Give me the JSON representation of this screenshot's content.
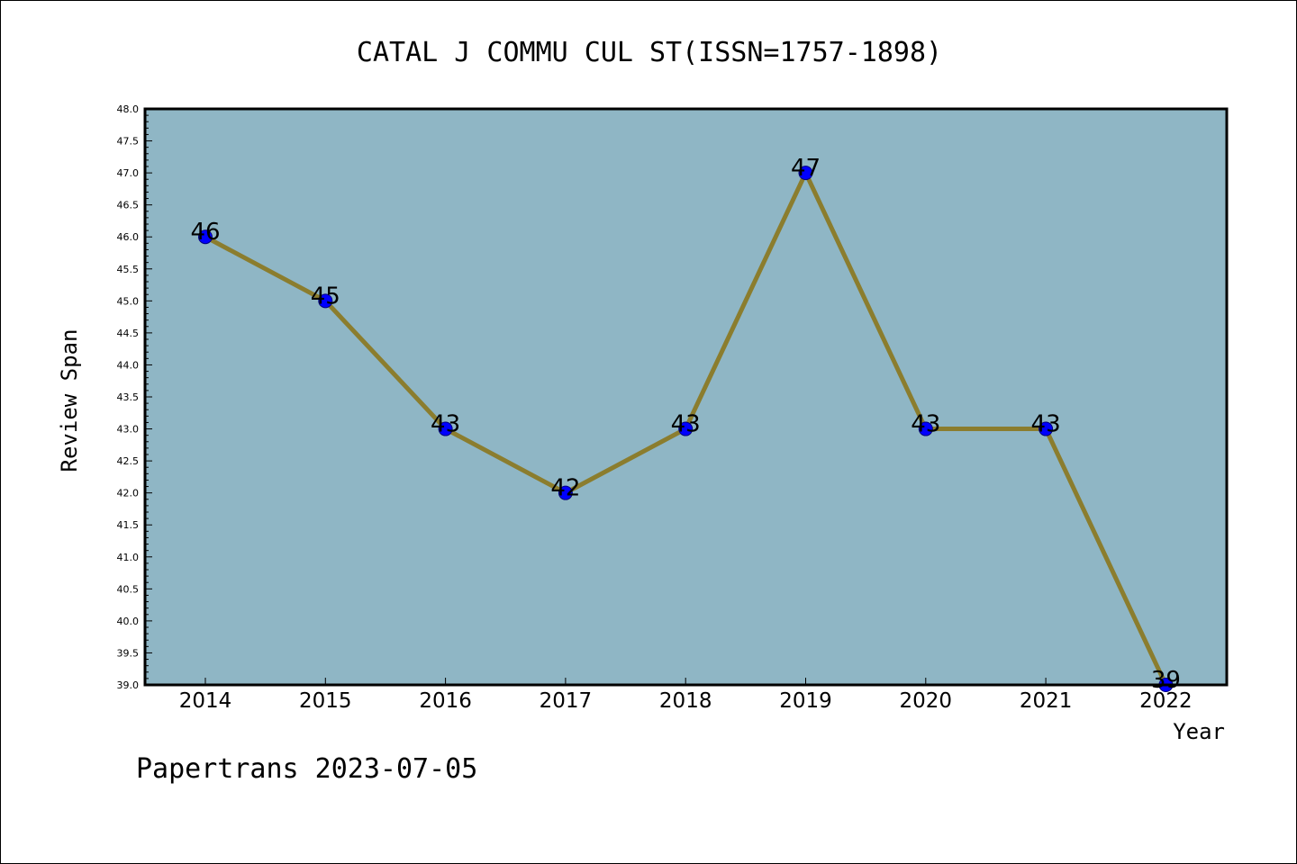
{
  "chart_data": {
    "type": "line",
    "title": "CATAL J COMMU CUL ST(ISSN=1757-1898)",
    "xlabel": "Year",
    "ylabel": "Review Span",
    "categories": [
      "2014",
      "2015",
      "2016",
      "2017",
      "2018",
      "2019",
      "2020",
      "2021",
      "2022"
    ],
    "series": [
      {
        "values": [
          46,
          45,
          43,
          42,
          43,
          47,
          43,
          43,
          39
        ]
      }
    ],
    "data_labels": [
      "46",
      "45",
      "43",
      "42",
      "43",
      "47",
      "43",
      "43",
      "39"
    ],
    "ylim": [
      39.0,
      48.0
    ],
    "yticks": [
      "39.0",
      "39.5",
      "40.0",
      "40.5",
      "41.0",
      "41.5",
      "42.0",
      "42.5",
      "43.0",
      "43.5",
      "44.0",
      "44.5",
      "45.0",
      "45.5",
      "46.0",
      "46.5",
      "47.0",
      "47.5",
      "48.0"
    ],
    "grid": false,
    "legend": "none",
    "colors": {
      "plot_background": "#8fb6c5",
      "line": "#8b7d2e",
      "marker_fill": "#0000ff",
      "marker_edge": "#000080"
    }
  },
  "footer": {
    "text": "Papertrans 2023-07-05"
  }
}
